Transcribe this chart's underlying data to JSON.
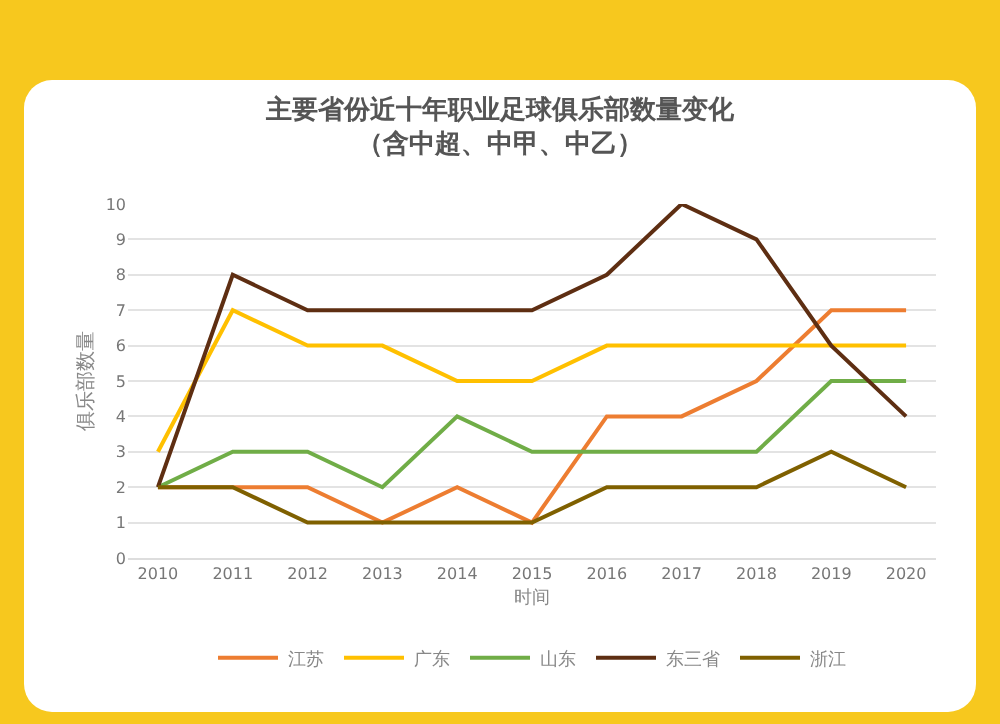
{
  "chart_data": {
    "type": "line",
    "title": "主要省份近十年职业足球俱乐部数量变化",
    "subtitle": "（含中超、中甲、中乙）",
    "xlabel": "时间",
    "ylabel": "俱乐部数量",
    "categories": [
      "2010",
      "2011",
      "2012",
      "2013",
      "2014",
      "2015",
      "2016",
      "2017",
      "2018",
      "2019",
      "2020"
    ],
    "series": [
      {
        "name": "江苏",
        "color": "#ed7d31",
        "values": [
          2,
          2,
          2,
          1,
          2,
          1,
          4,
          4,
          5,
          7,
          7
        ]
      },
      {
        "name": "广东",
        "color": "#ffc000",
        "values": [
          3,
          7,
          6,
          6,
          5,
          5,
          6,
          6,
          6,
          6,
          6
        ]
      },
      {
        "name": "山东",
        "color": "#70ad47",
        "values": [
          2,
          3,
          3,
          2,
          4,
          3,
          3,
          3,
          3,
          5,
          5
        ]
      },
      {
        "name": "东三省",
        "color": "#5e2e12",
        "values": [
          2,
          8,
          7,
          7,
          7,
          7,
          8,
          10,
          9,
          6,
          4
        ]
      },
      {
        "name": "浙江",
        "color": "#7f6000",
        "values": [
          2,
          2,
          1,
          1,
          1,
          1,
          2,
          2,
          2,
          3,
          2
        ]
      }
    ],
    "ylim": [
      0,
      10
    ],
    "yticks": [
      0,
      1,
      2,
      3,
      4,
      5,
      6,
      7,
      8,
      9,
      10
    ],
    "grid": "y",
    "legend": "bottom",
    "marker": "none",
    "line_style": "solid"
  }
}
